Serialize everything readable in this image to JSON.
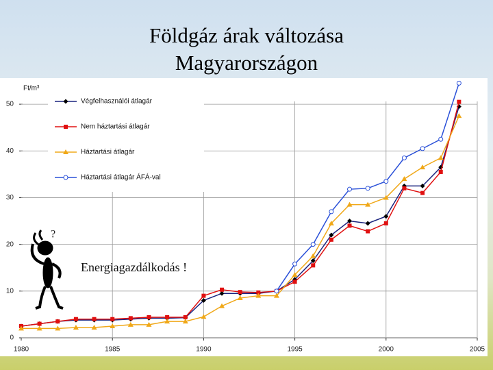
{
  "chart_data": {
    "type": "line",
    "title": "Földgáz árak változása Magyarországon",
    "y_label": "Ft/m³",
    "annotations": [
      "?",
      "Energiagazdálkodás !"
    ],
    "x": [
      1980,
      1981,
      1982,
      1983,
      1984,
      1985,
      1986,
      1987,
      1988,
      1989,
      1990,
      1991,
      1992,
      1993,
      1994,
      1995,
      1996,
      1997,
      1998,
      1999,
      2000,
      2001,
      2002,
      2003,
      2004
    ],
    "xlim": [
      1980,
      2005
    ],
    "xticks": [
      1980,
      1985,
      1990,
      1995,
      2000,
      2005
    ],
    "ylim": [
      0,
      55
    ],
    "yticks": [
      0,
      10,
      20,
      30,
      40,
      50
    ],
    "grid": true,
    "series": [
      {
        "name": "Végfelhasználói átlagár",
        "color": "#1a237e",
        "marker": "diamond",
        "values": [
          2.5,
          3,
          3.5,
          3.8,
          3.8,
          3.8,
          4,
          4.2,
          4.2,
          4.3,
          8,
          9.5,
          9.5,
          9.5,
          10,
          12.5,
          16.5,
          22,
          25,
          24.5,
          26,
          32.5,
          32.5,
          36.5,
          49.5
        ]
      },
      {
        "name": "Nem háztartási átlagár",
        "color": "#e01010",
        "marker": "square",
        "values": [
          2.5,
          3,
          3.5,
          4,
          4,
          4,
          4.2,
          4.4,
          4.4,
          4.4,
          9,
          10.3,
          9.8,
          9.7,
          10,
          12,
          15.5,
          21,
          24,
          22.8,
          24.5,
          32,
          31,
          35.5,
          50.5
        ]
      },
      {
        "name": "Háztartási átlagár",
        "color": "#f0a818",
        "marker": "triangle",
        "values": [
          2,
          2,
          2,
          2.2,
          2.2,
          2.5,
          2.8,
          2.8,
          3.5,
          3.5,
          4.5,
          6.8,
          8.5,
          9,
          9,
          13.5,
          17.5,
          24.5,
          28.5,
          28.5,
          30,
          34,
          36.5,
          38.5,
          47.5
        ]
      },
      {
        "name": "Háztartási átlagár ÁFÁ-val",
        "color": "#2a50d8",
        "marker": "circle",
        "values": [
          null,
          null,
          null,
          null,
          null,
          null,
          null,
          null,
          null,
          null,
          null,
          null,
          null,
          null,
          10,
          15.8,
          20,
          27,
          31.8,
          32,
          33.5,
          38.5,
          40.5,
          42.5,
          54.5
        ]
      }
    ]
  }
}
